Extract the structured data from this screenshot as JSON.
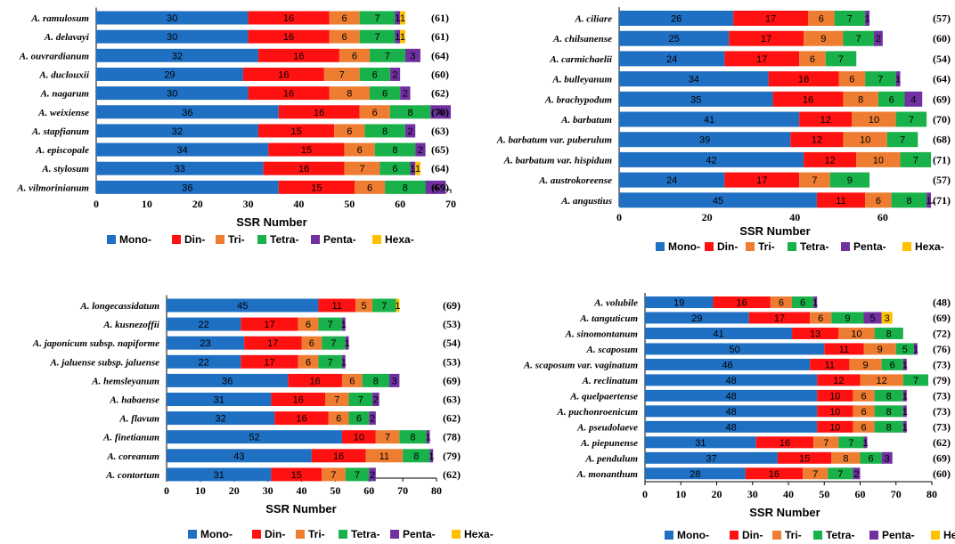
{
  "series_names": [
    "Mono-",
    "Din-",
    "Tri-",
    "Tetra-",
    "Penta-",
    "Hexa-"
  ],
  "series_colors": [
    "#1f6fc2",
    "#ff1111",
    "#ee7d31",
    "#19b14a",
    "#7030a0",
    "#ffc000"
  ],
  "chart_data": [
    {
      "type": "bar",
      "orientation": "horizontal",
      "stacked": true,
      "xlabel": "SSR Number",
      "xlim": [
        0,
        70
      ],
      "xticks": [
        0,
        10,
        20,
        30,
        40,
        50,
        60,
        70
      ],
      "categories": [
        "A. ramulosum",
        "A. delavayi",
        "A. ouvrardianum",
        "A. duclouxii",
        "A. nagarum",
        "A. weixiense",
        "A. stapfianum",
        "A. episcopale",
        "A. stylosum",
        "A. vilmorinianum"
      ],
      "values": [
        [
          30,
          16,
          6,
          7,
          1,
          1
        ],
        [
          30,
          16,
          6,
          7,
          1,
          1
        ],
        [
          32,
          16,
          6,
          7,
          3,
          0
        ],
        [
          29,
          16,
          7,
          6,
          2,
          0
        ],
        [
          30,
          16,
          8,
          6,
          2,
          0
        ],
        [
          36,
          16,
          6,
          8,
          4,
          0
        ],
        [
          32,
          15,
          6,
          8,
          2,
          0
        ],
        [
          34,
          15,
          6,
          8,
          2,
          0
        ],
        [
          33,
          16,
          7,
          6,
          1,
          1
        ],
        [
          36,
          15,
          6,
          8,
          4,
          0
        ]
      ],
      "labels": [
        [
          "30",
          "16",
          "6",
          "7",
          "1",
          "1"
        ],
        [
          "30",
          "16",
          "6",
          "7",
          "1",
          "1"
        ],
        [
          "32",
          "16",
          "6",
          "7",
          "3",
          ""
        ],
        [
          "29",
          "16",
          "7",
          "6",
          "2",
          ""
        ],
        [
          "30",
          "16",
          "8",
          "6",
          "2",
          ""
        ],
        [
          "36",
          "16",
          "6",
          "8",
          "4",
          ""
        ],
        [
          "32",
          "15",
          "6",
          "8",
          "2",
          ""
        ],
        [
          "34",
          "15",
          "6",
          "8",
          "2",
          ""
        ],
        [
          "33",
          "16",
          "7",
          "6",
          "1",
          "1"
        ],
        [
          "36",
          "15",
          "6",
          "8",
          "4",
          ""
        ]
      ],
      "totals": [
        "(61)",
        "(61)",
        "(64)",
        "(60)",
        "(62)",
        "(70)",
        "(63)",
        "(65)",
        "(64)",
        "(69)"
      ]
    },
    {
      "type": "bar",
      "orientation": "horizontal",
      "stacked": true,
      "xlabel": "SSR Number",
      "xlim": [
        0,
        72
      ],
      "xticks": [
        0,
        20,
        40,
        60
      ],
      "categories": [
        "A. ciliare",
        "A. chilsanense",
        "A. carmichaelii",
        "A. bulleyanum",
        "A. brachypodum",
        "A. barbatum",
        "A. barbatum var. puberulum",
        "A. barbatum var. hispidum",
        "A. austrokoreense",
        "A. angustius"
      ],
      "values": [
        [
          26,
          17,
          6,
          7,
          1,
          0
        ],
        [
          25,
          17,
          9,
          7,
          2,
          0
        ],
        [
          24,
          17,
          6,
          7,
          0,
          0
        ],
        [
          34,
          16,
          6,
          7,
          1,
          0
        ],
        [
          35,
          16,
          8,
          6,
          4,
          0
        ],
        [
          41,
          12,
          10,
          7,
          0,
          0
        ],
        [
          39,
          12,
          10,
          7,
          0,
          0
        ],
        [
          42,
          12,
          10,
          7,
          0,
          0
        ],
        [
          24,
          17,
          7,
          9,
          0,
          0
        ],
        [
          45,
          11,
          6,
          8,
          1,
          0
        ]
      ],
      "labels": [
        [
          "26",
          "17",
          "6",
          "7",
          "1",
          ""
        ],
        [
          "25",
          "17",
          "9",
          "7",
          "2",
          ""
        ],
        [
          "24",
          "17",
          "6",
          "7",
          "",
          ""
        ],
        [
          "34",
          "16",
          "6",
          "7",
          "1",
          ""
        ],
        [
          "35",
          "16",
          "8",
          "6",
          "4",
          ""
        ],
        [
          "41",
          "12",
          "10",
          "7",
          "",
          ""
        ],
        [
          "39",
          "12",
          "10",
          "7",
          "",
          ""
        ],
        [
          "42",
          "12",
          "10",
          "7",
          "",
          ""
        ],
        [
          "24",
          "17",
          "7",
          "9",
          "",
          ""
        ],
        [
          "45",
          "11",
          "6",
          "8",
          "1",
          ""
        ]
      ],
      "totals": [
        "(57)",
        "(60)",
        "(54)",
        "(64)",
        "(69)",
        "(70)",
        "(68)",
        "(71)",
        "(57)",
        "(71)"
      ]
    },
    {
      "type": "bar",
      "orientation": "horizontal",
      "stacked": true,
      "xlabel": "SSR Number",
      "xlim": [
        0,
        80
      ],
      "xticks": [
        0,
        10,
        20,
        30,
        40,
        50,
        60,
        70,
        80
      ],
      "categories": [
        "A. longecassidatum",
        "A. kusnezoffii",
        "A. japonicum subsp. napiforme",
        "A. jaluense subsp. jaluense",
        "A. hemsleyanum",
        "A. habaense",
        "A.  flavum",
        "A. finetianum",
        "A. coreanum",
        "A. contortum"
      ],
      "values": [
        [
          45,
          11,
          5,
          7,
          0,
          1
        ],
        [
          22,
          17,
          6,
          7,
          1,
          0
        ],
        [
          23,
          17,
          6,
          7,
          1,
          0
        ],
        [
          22,
          17,
          6,
          7,
          1,
          0
        ],
        [
          36,
          16,
          6,
          8,
          3,
          0
        ],
        [
          31,
          16,
          7,
          7,
          2,
          0
        ],
        [
          32,
          16,
          6,
          6,
          2,
          0
        ],
        [
          52,
          10,
          7,
          8,
          1,
          0
        ],
        [
          43,
          16,
          11,
          8,
          1,
          0
        ],
        [
          31,
          15,
          7,
          7,
          2,
          0
        ]
      ],
      "labels": [
        [
          "45",
          "11",
          "5",
          "7",
          "",
          "1"
        ],
        [
          "22",
          "17",
          "6",
          "7",
          "1",
          ""
        ],
        [
          "23",
          "17",
          "6",
          "7",
          "1",
          ""
        ],
        [
          "22",
          "17",
          "6",
          "7",
          "1",
          ""
        ],
        [
          "36",
          "16",
          "6",
          "8",
          "3",
          ""
        ],
        [
          "31",
          "16",
          "7",
          "7",
          "2",
          ""
        ],
        [
          "32",
          "16",
          "6",
          "6",
          "2",
          ""
        ],
        [
          "52",
          "10",
          "7",
          "8",
          "1",
          ""
        ],
        [
          "43",
          "16",
          "11",
          "8",
          "1",
          ""
        ],
        [
          "31",
          "15",
          "7",
          "7",
          "2",
          ""
        ]
      ],
      "totals": [
        "(69)",
        "(53)",
        "(54)",
        "(53)",
        "(69)",
        "(63)",
        "(62)",
        "(78)",
        "(79)",
        "(62)"
      ]
    },
    {
      "type": "bar",
      "orientation": "horizontal",
      "stacked": true,
      "xlabel": "SSR Number",
      "xlim": [
        0,
        80
      ],
      "xticks": [
        0,
        10,
        20,
        30,
        40,
        50,
        60,
        70,
        80
      ],
      "categories": [
        "A. volubile",
        "A. tanguticum",
        "A. sinomontanum",
        "A. scaposum",
        "A. scaposum var. vaginatum",
        "A. reclinatum",
        "A. quelpaertense",
        "A. puchonroenicum",
        "A. pseudolaeve",
        "A. piepunense",
        "A. pendulum",
        "A. monanthum"
      ],
      "values": [
        [
          19,
          16,
          6,
          6,
          1,
          0
        ],
        [
          29,
          17,
          6,
          9,
          5,
          3
        ],
        [
          41,
          13,
          10,
          8,
          0,
          0
        ],
        [
          50,
          11,
          9,
          5,
          1,
          0
        ],
        [
          46,
          11,
          9,
          6,
          1,
          0
        ],
        [
          48,
          12,
          12,
          7,
          0,
          0
        ],
        [
          48,
          10,
          6,
          8,
          1,
          0
        ],
        [
          48,
          10,
          6,
          8,
          1,
          0
        ],
        [
          48,
          10,
          6,
          8,
          1,
          0
        ],
        [
          31,
          16,
          7,
          7,
          1,
          0
        ],
        [
          37,
          15,
          8,
          6,
          3,
          0
        ],
        [
          28,
          16,
          7,
          7,
          2,
          0
        ]
      ],
      "labels": [
        [
          "19",
          "16",
          "6",
          "6",
          "1",
          ""
        ],
        [
          "29",
          "17",
          "6",
          "9",
          "5",
          "3"
        ],
        [
          "41",
          "13",
          "10",
          "8",
          "",
          ""
        ],
        [
          "50",
          "11",
          "9",
          "5",
          "1",
          ""
        ],
        [
          "46",
          "11",
          "9",
          "6",
          "1",
          ""
        ],
        [
          "48",
          "12",
          "12",
          "7",
          "",
          ""
        ],
        [
          "48",
          "10",
          "6",
          "8",
          "1",
          ""
        ],
        [
          "48",
          "10",
          "6",
          "8",
          "1",
          ""
        ],
        [
          "48",
          "10",
          "6",
          "8",
          "1",
          ""
        ],
        [
          "31",
          "16",
          "7",
          "7",
          "1",
          ""
        ],
        [
          "37",
          "15",
          "8",
          "6",
          "3",
          ""
        ],
        [
          "28",
          "16",
          "7",
          "7",
          "2",
          ""
        ]
      ],
      "totals": [
        "(48)",
        "(69)",
        "(72)",
        "(76)",
        "(73)",
        "(79)",
        "(73)",
        "(73)",
        "(73)",
        "(62)",
        "(69)",
        "(60)"
      ]
    }
  ]
}
